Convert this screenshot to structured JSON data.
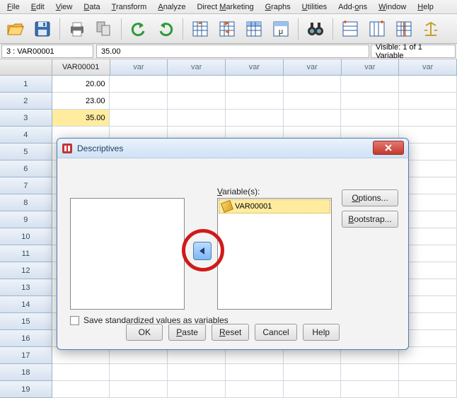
{
  "colors": {
    "accent_blue": "#4a7db5",
    "selection_yellow": "#ffec9e",
    "toolbar_grad_top": "#f8f8f8",
    "toolbar_grad_bot": "#e4e4e4",
    "header_grad_top": "#eef3f9",
    "header_grad_bot": "#d6e2ef",
    "dialog_title_top": "#eaf3fc",
    "dialog_title_bot": "#cfe2f5",
    "close_red_top": "#e27a70",
    "close_red_bot": "#c5382f",
    "annotation_red": "#d01a1a"
  },
  "menu": {
    "file": "File",
    "edit": "Edit",
    "view": "View",
    "data": "Data",
    "transform": "Transform",
    "analyze": "Analyze",
    "direct_marketing": "Direct Marketing",
    "graphs": "Graphs",
    "utilities": "Utilities",
    "addons": "Add-ons",
    "window": "Window",
    "help": "Help"
  },
  "toolbar_icons": [
    "open",
    "save",
    "print",
    "recall",
    "undo",
    "redo",
    "goto-case",
    "goto-var",
    "variables",
    "run",
    "find",
    "insert-case",
    "insert-var",
    "split",
    "weight"
  ],
  "infobar": {
    "address": "3 : VAR00001",
    "value": "35.00",
    "visible": "Visible: 1 of 1 Variable"
  },
  "sheet": {
    "named_column": "VAR00001",
    "placeholder_col": "var",
    "data": {
      "1": "20.00",
      "2": "23.00",
      "3": "35.00"
    },
    "selected_row": 3,
    "row_count": 19,
    "col_count": 7
  },
  "dialog": {
    "title": "Descriptives",
    "variables_label": "Variable(s):",
    "selected_var": "VAR00001",
    "options_label": "Options...",
    "bootstrap_label": "Bootstrap...",
    "save_std_label": "Save standardized values as variables",
    "buttons": {
      "ok": "OK",
      "paste": "Paste",
      "reset": "Reset",
      "cancel": "Cancel",
      "help": "Help"
    }
  }
}
